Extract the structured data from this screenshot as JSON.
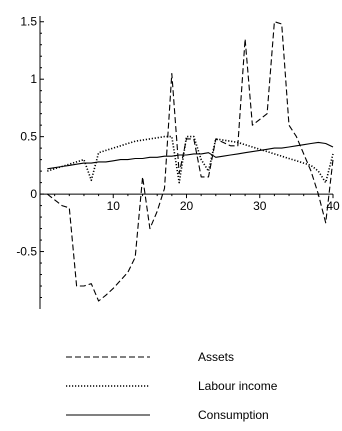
{
  "chart_data": {
    "type": "line",
    "xlim": [
      0,
      40
    ],
    "ylim": [
      -1.0,
      1.55
    ],
    "x_ticks": [
      10,
      20,
      30,
      40
    ],
    "y_ticks": [
      -0.5,
      0,
      0.5,
      1,
      1.5
    ],
    "x_tick_labels": [
      "10",
      "20",
      "30",
      "40"
    ],
    "y_tick_labels": [
      "-0.5",
      "0",
      "0.5",
      "1",
      "1.5"
    ],
    "grid": false,
    "legend_position": "bottom",
    "series": [
      {
        "name": "Assets",
        "style": "dashed",
        "color": "#000000",
        "points": [
          [
            1,
            0
          ],
          [
            2,
            -0.05
          ],
          [
            3,
            -0.1
          ],
          [
            4,
            -0.12
          ],
          [
            5,
            -0.8
          ],
          [
            6,
            -0.8
          ],
          [
            7,
            -0.78
          ],
          [
            8,
            -0.93
          ],
          [
            9,
            -0.88
          ],
          [
            10,
            -0.82
          ],
          [
            11,
            -0.75
          ],
          [
            12,
            -0.68
          ],
          [
            13,
            -0.55
          ],
          [
            14,
            0.15
          ],
          [
            15,
            -0.3
          ],
          [
            16,
            -0.15
          ],
          [
            17,
            0.05
          ],
          [
            18,
            1.05
          ],
          [
            19,
            0.18
          ],
          [
            20,
            0.48
          ],
          [
            21,
            0.48
          ],
          [
            22,
            0.15
          ],
          [
            23,
            0.15
          ],
          [
            24,
            0.48
          ],
          [
            25,
            0.45
          ],
          [
            26,
            0.42
          ],
          [
            27,
            0.42
          ],
          [
            28,
            1.35
          ],
          [
            29,
            0.6
          ],
          [
            30,
            0.65
          ],
          [
            31,
            0.7
          ],
          [
            32,
            1.5
          ],
          [
            33,
            1.48
          ],
          [
            34,
            0.6
          ],
          [
            35,
            0.5
          ],
          [
            36,
            0.35
          ],
          [
            37,
            0.2
          ],
          [
            38,
            0.0
          ],
          [
            39,
            -0.25
          ],
          [
            40,
            0.3
          ]
        ]
      },
      {
        "name": "Labour income",
        "style": "dotted",
        "color": "#000000",
        "points": [
          [
            1,
            0.2
          ],
          [
            2,
            0.22
          ],
          [
            3,
            0.24
          ],
          [
            4,
            0.26
          ],
          [
            5,
            0.28
          ],
          [
            6,
            0.3
          ],
          [
            7,
            0.12
          ],
          [
            8,
            0.36
          ],
          [
            9,
            0.38
          ],
          [
            10,
            0.4
          ],
          [
            11,
            0.42
          ],
          [
            12,
            0.44
          ],
          [
            13,
            0.46
          ],
          [
            14,
            0.47
          ],
          [
            15,
            0.48
          ],
          [
            16,
            0.49
          ],
          [
            17,
            0.5
          ],
          [
            18,
            0.5
          ],
          [
            19,
            0.1
          ],
          [
            20,
            0.5
          ],
          [
            21,
            0.5
          ],
          [
            22,
            0.3
          ],
          [
            23,
            0.2
          ],
          [
            24,
            0.48
          ],
          [
            25,
            0.47
          ],
          [
            26,
            0.46
          ],
          [
            27,
            0.45
          ],
          [
            28,
            0.43
          ],
          [
            29,
            0.41
          ],
          [
            30,
            0.39
          ],
          [
            31,
            0.37
          ],
          [
            32,
            0.35
          ],
          [
            33,
            0.33
          ],
          [
            34,
            0.31
          ],
          [
            35,
            0.29
          ],
          [
            36,
            0.27
          ],
          [
            37,
            0.25
          ],
          [
            38,
            0.2
          ],
          [
            39,
            0.1
          ],
          [
            40,
            0.35
          ]
        ]
      },
      {
        "name": "Consumption",
        "style": "solid",
        "color": "#000000",
        "points": [
          [
            1,
            0.22
          ],
          [
            2,
            0.23
          ],
          [
            3,
            0.24
          ],
          [
            4,
            0.25
          ],
          [
            5,
            0.26
          ],
          [
            6,
            0.27
          ],
          [
            7,
            0.27
          ],
          [
            8,
            0.28
          ],
          [
            9,
            0.28
          ],
          [
            10,
            0.29
          ],
          [
            11,
            0.3
          ],
          [
            12,
            0.3
          ],
          [
            13,
            0.31
          ],
          [
            14,
            0.31
          ],
          [
            15,
            0.32
          ],
          [
            16,
            0.32
          ],
          [
            17,
            0.33
          ],
          [
            18,
            0.33
          ],
          [
            19,
            0.34
          ],
          [
            20,
            0.34
          ],
          [
            21,
            0.35
          ],
          [
            22,
            0.35
          ],
          [
            23,
            0.36
          ],
          [
            24,
            0.32
          ],
          [
            25,
            0.33
          ],
          [
            26,
            0.34
          ],
          [
            27,
            0.35
          ],
          [
            28,
            0.36
          ],
          [
            29,
            0.37
          ],
          [
            30,
            0.38
          ],
          [
            31,
            0.39
          ],
          [
            32,
            0.4
          ],
          [
            33,
            0.4
          ],
          [
            34,
            0.41
          ],
          [
            35,
            0.42
          ],
          [
            36,
            0.43
          ],
          [
            37,
            0.44
          ],
          [
            38,
            0.45
          ],
          [
            39,
            0.44
          ],
          [
            40,
            0.41
          ]
        ]
      }
    ]
  }
}
